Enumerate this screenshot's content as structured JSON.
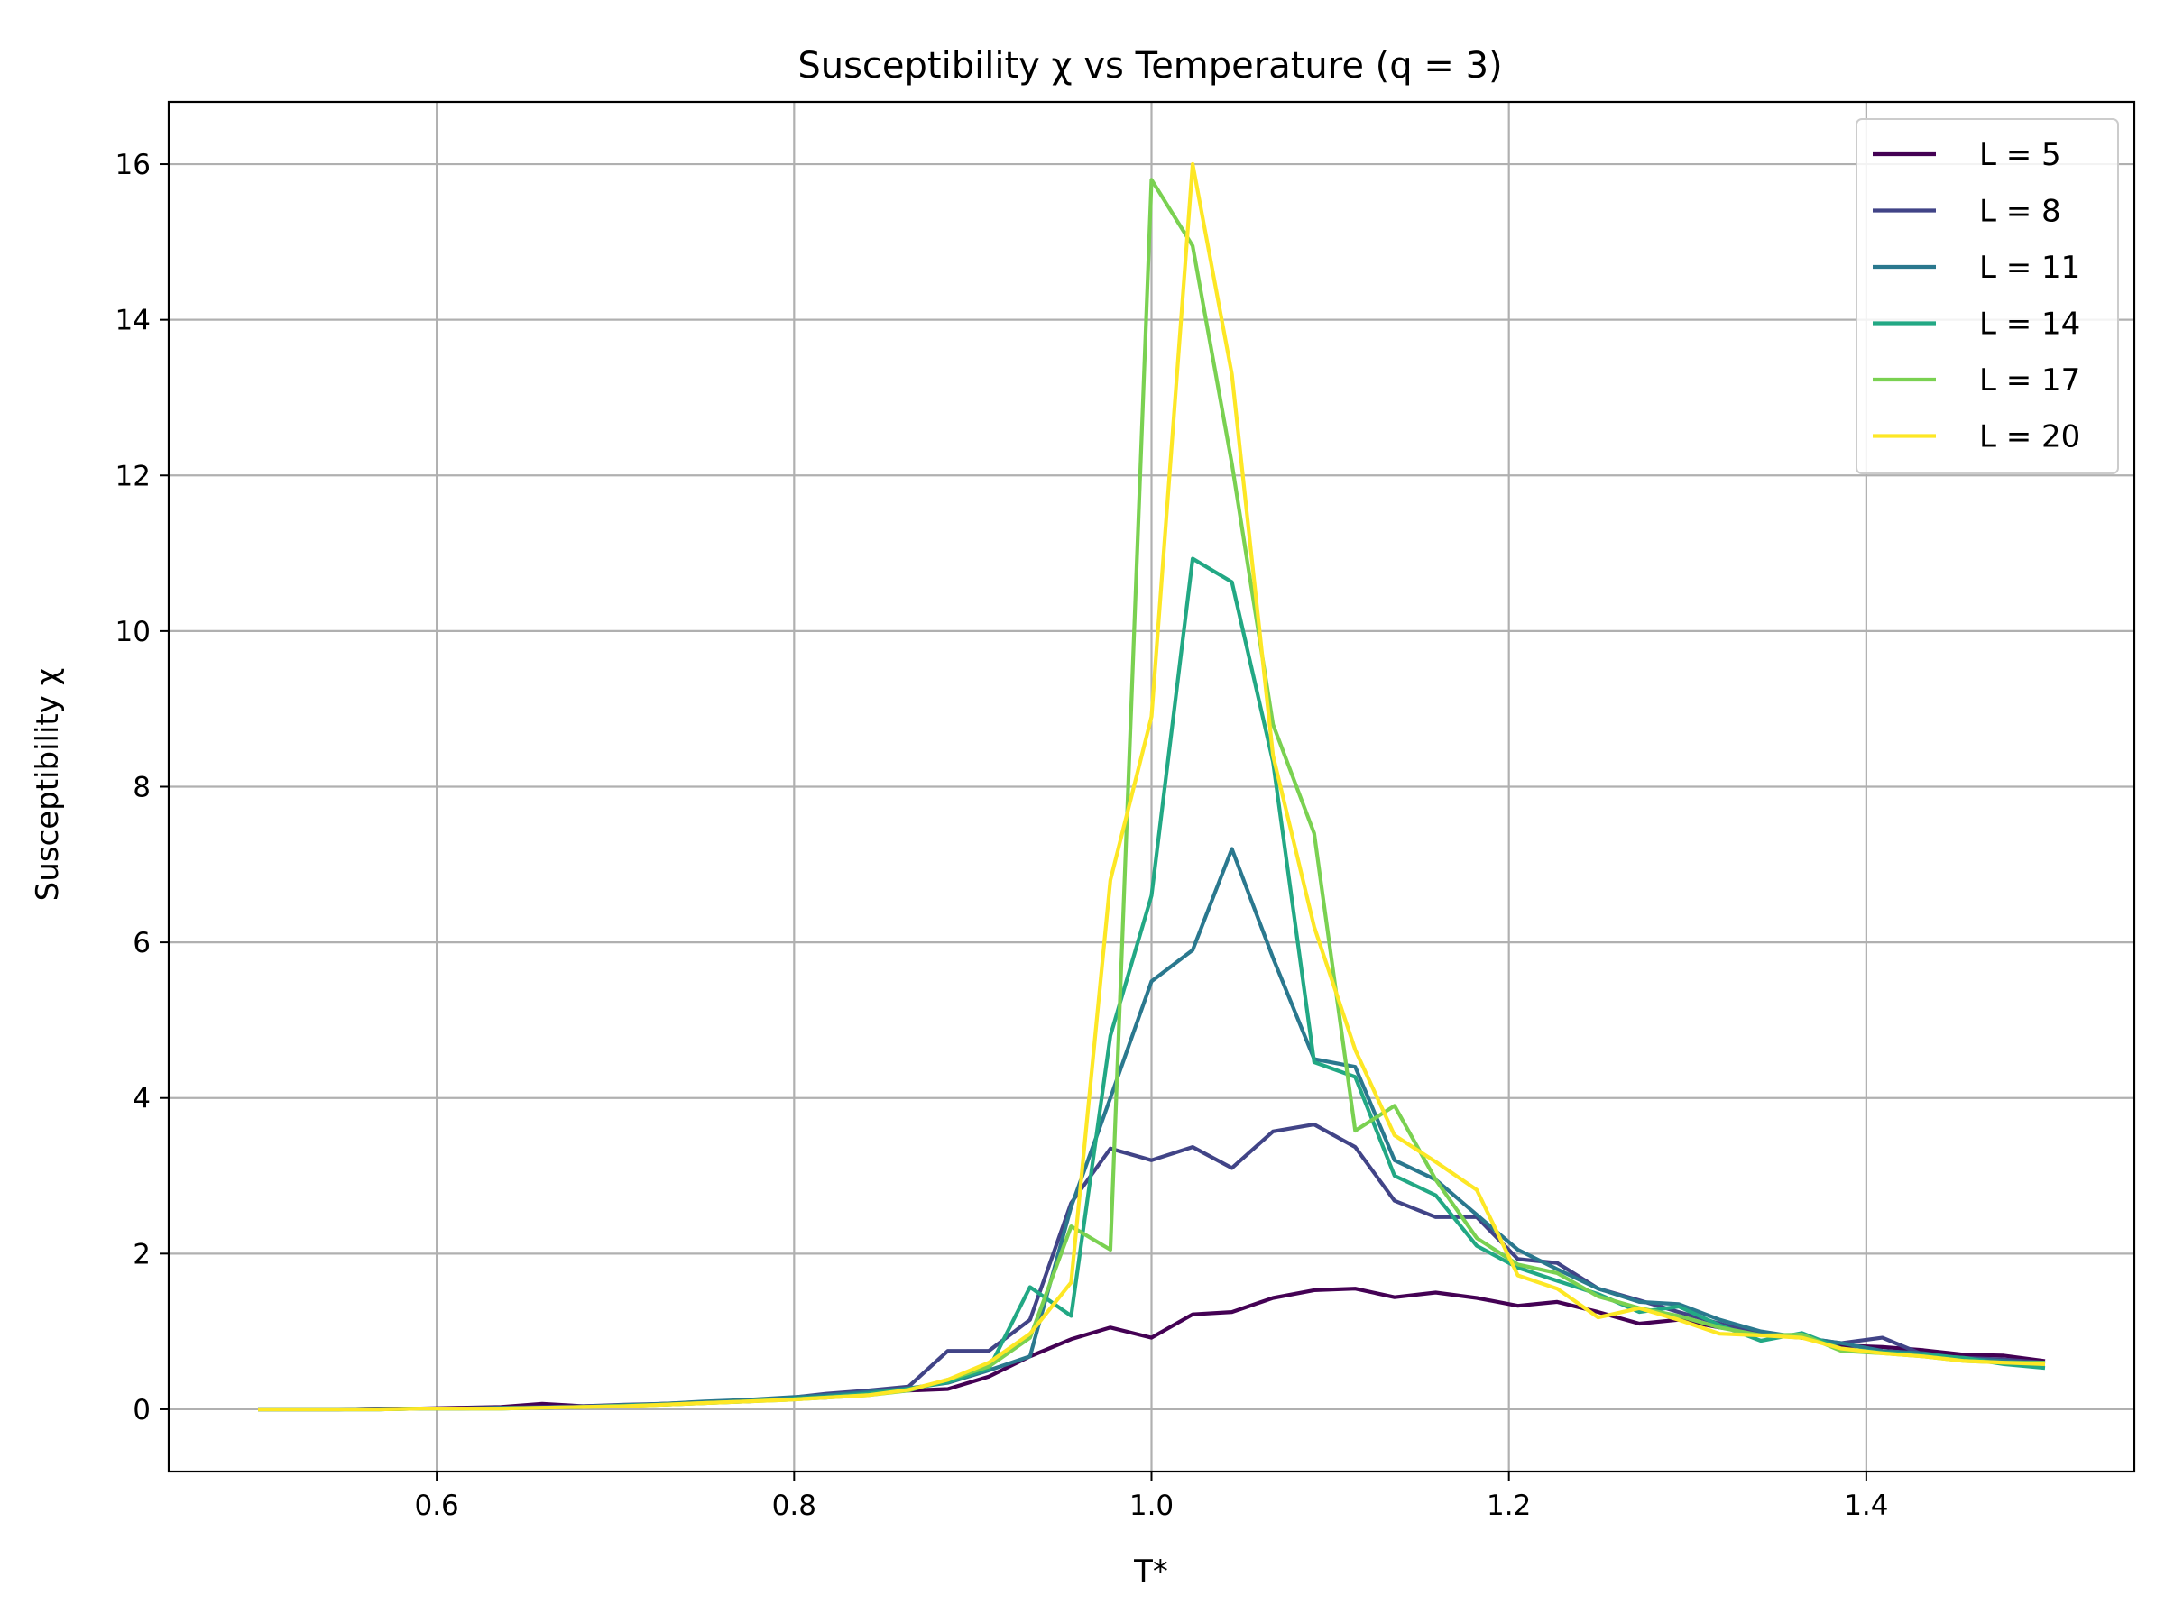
{
  "chart_data": {
    "type": "line",
    "title": "Susceptibility χ vs Temperature (q = 3)",
    "xlabel": "T*",
    "ylabel": "Susceptibility χ",
    "xlim": [
      0.45,
      1.55
    ],
    "ylim": [
      -0.8,
      16.8
    ],
    "xticks": [
      0.6,
      0.8,
      1.0,
      1.2,
      1.4
    ],
    "xtick_labels": [
      "0.6",
      "0.8",
      "1.0",
      "1.2",
      "1.4"
    ],
    "yticks": [
      0,
      2,
      4,
      6,
      8,
      10,
      12,
      14,
      16
    ],
    "ytick_labels": [
      "0",
      "2",
      "4",
      "6",
      "8",
      "10",
      "12",
      "14",
      "16"
    ],
    "grid": true,
    "legend_position": "top-right",
    "x": [
      0.5,
      0.523,
      0.545,
      0.568,
      0.591,
      0.614,
      0.636,
      0.659,
      0.682,
      0.705,
      0.727,
      0.75,
      0.773,
      0.795,
      0.818,
      0.841,
      0.864,
      0.886,
      0.909,
      0.932,
      0.955,
      0.977,
      1.0,
      1.023,
      1.045,
      1.068,
      1.091,
      1.114,
      1.136,
      1.159,
      1.182,
      1.205,
      1.227,
      1.25,
      1.273,
      1.295,
      1.318,
      1.341,
      1.364,
      1.386,
      1.409,
      1.432,
      1.455,
      1.477,
      1.5
    ],
    "series": [
      {
        "name": "L = 5",
        "color": "#440154",
        "values": [
          0.0,
          0.0,
          0.0,
          0.01,
          0.01,
          0.02,
          0.03,
          0.07,
          0.04,
          0.05,
          0.07,
          0.09,
          0.1,
          0.13,
          0.15,
          0.2,
          0.24,
          0.26,
          0.42,
          0.68,
          0.9,
          1.05,
          0.92,
          1.22,
          1.25,
          1.43,
          1.53,
          1.55,
          1.44,
          1.5,
          1.43,
          1.33,
          1.38,
          1.25,
          1.1,
          1.15,
          1.05,
          0.98,
          0.92,
          0.82,
          0.8,
          0.76,
          0.7,
          0.69,
          0.62
        ]
      },
      {
        "name": "L = 8",
        "color": "#414487",
        "values": [
          0.0,
          0.0,
          0.0,
          0.01,
          0.01,
          0.01,
          0.02,
          0.03,
          0.04,
          0.06,
          0.07,
          0.09,
          0.12,
          0.14,
          0.2,
          0.24,
          0.29,
          0.75,
          0.75,
          1.15,
          2.65,
          3.35,
          3.2,
          3.37,
          3.1,
          3.57,
          3.66,
          3.37,
          2.68,
          2.47,
          2.47,
          1.93,
          1.88,
          1.55,
          1.4,
          1.25,
          1.1,
          0.96,
          0.92,
          0.85,
          0.92,
          0.7,
          0.66,
          0.64,
          0.6
        ]
      },
      {
        "name": "L = 11",
        "color": "#2a788e",
        "values": [
          0.0,
          0.0,
          0.0,
          0.0,
          0.01,
          0.01,
          0.02,
          0.02,
          0.03,
          0.05,
          0.07,
          0.1,
          0.12,
          0.15,
          0.18,
          0.22,
          0.27,
          0.34,
          0.5,
          0.68,
          2.6,
          4.0,
          5.5,
          5.9,
          7.2,
          5.8,
          4.5,
          4.4,
          3.2,
          2.95,
          2.5,
          2.05,
          1.8,
          1.55,
          1.38,
          1.35,
          1.15,
          1.0,
          0.92,
          0.85,
          0.75,
          0.72,
          0.65,
          0.62,
          0.58
        ]
      },
      {
        "name": "L = 14",
        "color": "#22a884",
        "values": [
          0.0,
          0.0,
          0.0,
          0.0,
          0.01,
          0.01,
          0.01,
          0.02,
          0.03,
          0.05,
          0.06,
          0.08,
          0.1,
          0.13,
          0.16,
          0.2,
          0.26,
          0.35,
          0.52,
          1.57,
          1.2,
          4.8,
          6.6,
          10.93,
          10.63,
          8.32,
          4.46,
          4.27,
          3.0,
          2.75,
          2.1,
          1.82,
          1.65,
          1.48,
          1.25,
          1.32,
          1.08,
          0.88,
          0.98,
          0.78,
          0.73,
          0.7,
          0.66,
          0.58,
          0.53
        ]
      },
      {
        "name": "L = 17",
        "color": "#7ad151",
        "values": [
          0.0,
          0.0,
          0.0,
          0.0,
          0.01,
          0.01,
          0.01,
          0.02,
          0.03,
          0.04,
          0.06,
          0.08,
          0.1,
          0.12,
          0.15,
          0.18,
          0.24,
          0.38,
          0.55,
          0.92,
          2.35,
          2.05,
          15.8,
          14.95,
          12.15,
          8.8,
          7.4,
          3.58,
          3.9,
          2.95,
          2.2,
          1.86,
          1.75,
          1.45,
          1.3,
          1.2,
          1.05,
          0.95,
          0.96,
          0.75,
          0.72,
          0.68,
          0.62,
          0.6,
          0.6
        ]
      },
      {
        "name": "L = 20",
        "color": "#fde725",
        "values": [
          0.0,
          0.0,
          0.0,
          0.0,
          0.01,
          0.01,
          0.01,
          0.02,
          0.03,
          0.04,
          0.06,
          0.08,
          0.1,
          0.12,
          0.15,
          0.18,
          0.25,
          0.38,
          0.6,
          0.97,
          1.63,
          6.8,
          8.9,
          16.0,
          13.3,
          8.4,
          6.2,
          4.62,
          3.52,
          3.18,
          2.82,
          1.72,
          1.55,
          1.18,
          1.3,
          1.15,
          0.97,
          0.95,
          0.92,
          0.78,
          0.72,
          0.68,
          0.62,
          0.6,
          0.58
        ]
      }
    ]
  }
}
